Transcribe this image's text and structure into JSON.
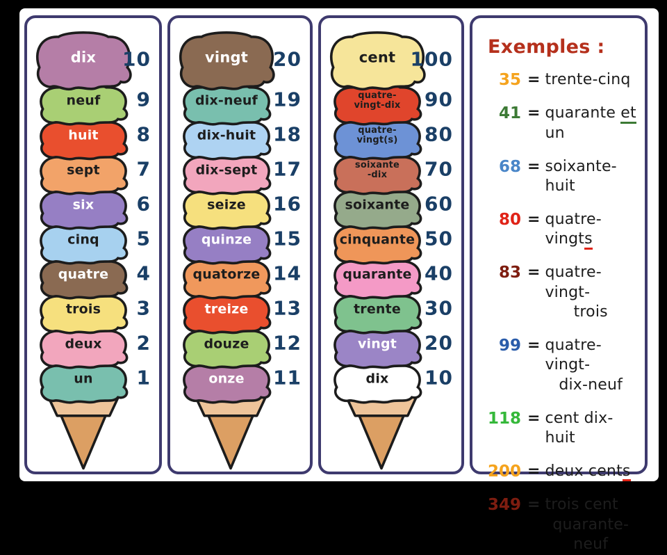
{
  "canvas": {
    "background": "#000000",
    "card_background": "#ffffff",
    "panel_border_color": "#3e3a6e",
    "number_color": "#1a3f66",
    "cone_rim_color": "#eec49a",
    "cone_body_color": "#dc9f63",
    "outline_color": "#1c1c1c"
  },
  "cones": [
    {
      "scoops": [
        {
          "label": "dix",
          "number": "10",
          "fill": "#b57ea7",
          "text_color": "#ffffff"
        },
        {
          "label": "neuf",
          "number": "9",
          "fill": "#a9cf74",
          "text_color": "#1d1d1d"
        },
        {
          "label": "huit",
          "number": "8",
          "fill": "#e94f2e",
          "text_color": "#ffffff"
        },
        {
          "label": "sept",
          "number": "7",
          "fill": "#f2a369",
          "text_color": "#1d1d1d"
        },
        {
          "label": "six",
          "number": "6",
          "fill": "#967fc4",
          "text_color": "#ffffff"
        },
        {
          "label": "cinq",
          "number": "5",
          "fill": "#a7d1ef",
          "text_color": "#1d1d1d"
        },
        {
          "label": "quatre",
          "number": "4",
          "fill": "#8a6a52",
          "text_color": "#ffffff"
        },
        {
          "label": "trois",
          "number": "3",
          "fill": "#f6e07e",
          "text_color": "#1d1d1d"
        },
        {
          "label": "deux",
          "number": "2",
          "fill": "#f2a6bd",
          "text_color": "#1d1d1d"
        },
        {
          "label": "un",
          "number": "1",
          "fill": "#79bfae",
          "text_color": "#1d1d1d"
        }
      ]
    },
    {
      "scoops": [
        {
          "label": "vingt",
          "number": "20",
          "fill": "#8a6a52",
          "text_color": "#ffffff"
        },
        {
          "label": "dix-neuf",
          "number": "19",
          "fill": "#79bfae",
          "text_color": "#1d1d1d"
        },
        {
          "label": "dix-huit",
          "number": "18",
          "fill": "#aed3f2",
          "text_color": "#1d1d1d"
        },
        {
          "label": "dix-sept",
          "number": "17",
          "fill": "#f2a6bd",
          "text_color": "#1d1d1d"
        },
        {
          "label": "seize",
          "number": "16",
          "fill": "#f6e07e",
          "text_color": "#1d1d1d"
        },
        {
          "label": "quinze",
          "number": "15",
          "fill": "#967fc4",
          "text_color": "#ffffff"
        },
        {
          "label": "quatorze",
          "number": "14",
          "fill": "#f0985c",
          "text_color": "#1d1d1d"
        },
        {
          "label": "treize",
          "number": "13",
          "fill": "#e94f2e",
          "text_color": "#ffffff"
        },
        {
          "label": "douze",
          "number": "12",
          "fill": "#a9cf74",
          "text_color": "#1d1d1d"
        },
        {
          "label": "onze",
          "number": "11",
          "fill": "#b57ea7",
          "text_color": "#ffffff"
        }
      ]
    },
    {
      "scoops": [
        {
          "label": "cent",
          "number": "100",
          "fill": "#f6e59a",
          "text_color": "#1d1d1d"
        },
        {
          "label": "quatre-\nvingt-dix",
          "number": "90",
          "fill": "#e0452c",
          "text_color": "#1d1d1d",
          "small": true
        },
        {
          "label": "quatre-\nvingt(s)",
          "number": "80",
          "fill": "#6d92d6",
          "text_color": "#1d1d1d",
          "small": true
        },
        {
          "label": "soixante\n-dix",
          "number": "70",
          "fill": "#c9705a",
          "text_color": "#1d1d1d",
          "small": true
        },
        {
          "label": "soixante",
          "number": "60",
          "fill": "#95aa8b",
          "text_color": "#1d1d1d"
        },
        {
          "label": "cinquante",
          "number": "50",
          "fill": "#ef9659",
          "text_color": "#1d1d1d"
        },
        {
          "label": "quarante",
          "number": "40",
          "fill": "#f49ac6",
          "text_color": "#1d1d1d"
        },
        {
          "label": "trente",
          "number": "30",
          "fill": "#7fc28e",
          "text_color": "#1d1d1d"
        },
        {
          "label": "vingt",
          "number": "20",
          "fill": "#9b85c6",
          "text_color": "#ffffff"
        },
        {
          "label": "dix",
          "number": "10",
          "fill": "#ffffff",
          "text_color": "#1d1d1d"
        }
      ]
    }
  ],
  "examples": {
    "title": "Exemples :",
    "title_color": "#b5301c",
    "equals_sign": "=",
    "items": [
      {
        "value": "35",
        "value_color": "#f5a31d",
        "lines": [
          [
            {
              "t": "trente-cinq"
            }
          ]
        ]
      },
      {
        "value": "41",
        "value_color": "#3c7a35",
        "lines": [
          [
            {
              "t": "quarante "
            },
            {
              "t": "et",
              "u": "#3c7a35"
            },
            {
              "t": " un"
            }
          ]
        ]
      },
      {
        "value": "68",
        "value_color": "#4a86c8",
        "lines": [
          [
            {
              "t": "soixante-huit"
            }
          ]
        ]
      },
      {
        "value": "80",
        "value_color": "#e02317",
        "lines": [
          [
            {
              "t": "quatre-vingt"
            },
            {
              "t": "s",
              "u": "#e02317"
            }
          ]
        ]
      },
      {
        "value": "83",
        "value_color": "#7e1d10",
        "lines": [
          [
            {
              "t": "quatre-vingt-"
            }
          ],
          [
            {
              "t": "trois"
            }
          ]
        ]
      },
      {
        "value": "99",
        "value_color": "#2a5caa",
        "lines": [
          [
            {
              "t": "quatre-vingt-"
            }
          ],
          [
            {
              "t": "dix-neuf"
            }
          ]
        ]
      },
      {
        "value": "118",
        "value_color": "#35b83a",
        "lines": [
          [
            {
              "t": "cent dix-huit"
            }
          ]
        ]
      },
      {
        "value": "200",
        "value_color": "#f5a31d",
        "lines": [
          [
            {
              "t": "deux cent"
            },
            {
              "t": "s",
              "u": "#e02317"
            }
          ]
        ]
      },
      {
        "value": "349",
        "value_color": "#7e1d10",
        "lines": [
          [
            {
              "t": "trois cent"
            }
          ],
          [
            {
              "t": "quarante-neuf"
            }
          ]
        ]
      }
    ]
  }
}
